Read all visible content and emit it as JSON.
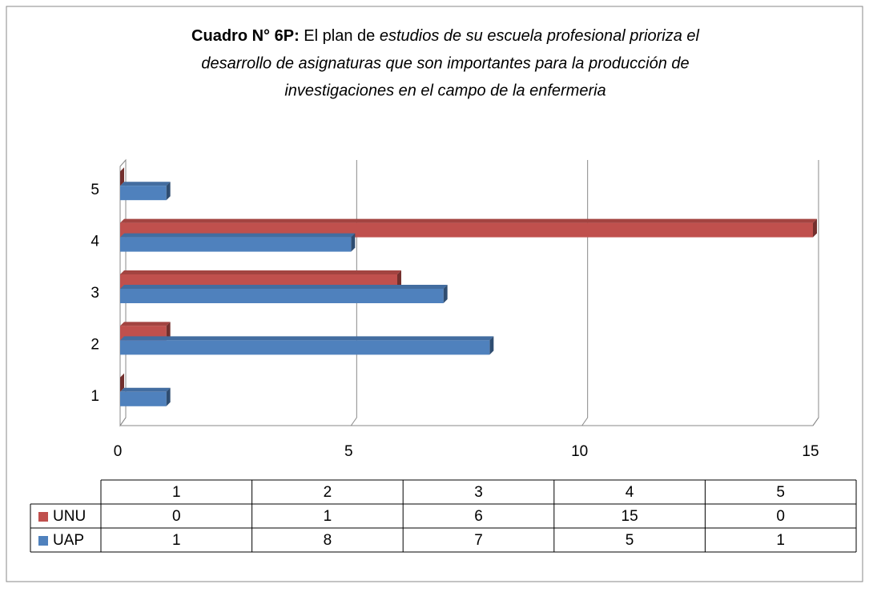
{
  "chart_data": {
    "type": "bar",
    "orientation": "horizontal",
    "title": [
      "Cuadro N° 6P:",
      "El plan de",
      "estudios de su escuela profesional prioriza el",
      "desarrollo de asignaturas que son importantes para la producción de",
      "investigaciones en el campo de la enfermeria"
    ],
    "categories": [
      "1",
      "2",
      "3",
      "4",
      "5"
    ],
    "series": [
      {
        "name": "UNU",
        "color": "#c0504d",
        "values": [
          0,
          1,
          6,
          15,
          0
        ]
      },
      {
        "name": "UAP",
        "color": "#4f81bd",
        "values": [
          1,
          8,
          7,
          5,
          1
        ]
      }
    ],
    "xlim": [
      0,
      15
    ],
    "xticks": [
      0,
      5,
      10,
      15
    ],
    "grid": true,
    "data_table": true
  }
}
